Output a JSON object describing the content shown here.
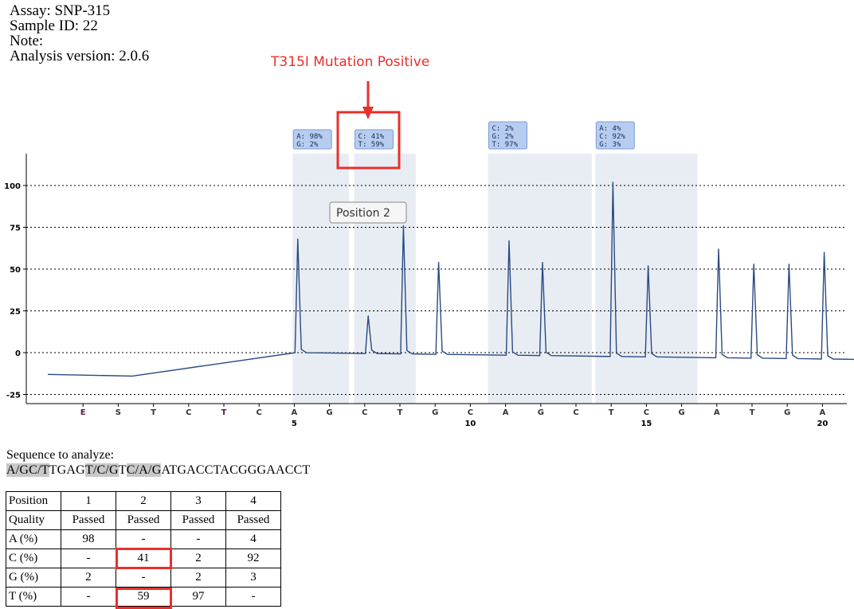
{
  "header": {
    "assay": "Assay: SNP-315",
    "sample": "Sample ID: 22",
    "note": "Note:",
    "version": "Analysis version: 2.0.6"
  },
  "annotation": {
    "text": "T315I Mutation Positive",
    "color": "#e8302c"
  },
  "tooltip": "Position 2",
  "chart_data": {
    "type": "line",
    "ylim": [
      -28,
      118
    ],
    "yticks": [
      100,
      75,
      50,
      25,
      0,
      -25
    ],
    "grid": "dotted horizontal",
    "line_color": "#2a4a84",
    "highlight_color": "#e8edf3",
    "dispensation_order": [
      "E",
      "S",
      "T",
      "C",
      "T",
      "C",
      "A",
      "G",
      "C",
      "T",
      "G",
      "C",
      "A",
      "G",
      "C",
      "T",
      "C",
      "G",
      "A",
      "T",
      "G",
      "A"
    ],
    "dispensation_numbers": [
      {
        "index": 7,
        "label": "5"
      },
      {
        "index": 12,
        "label": "10"
      },
      {
        "index": 17,
        "label": "15"
      },
      {
        "index": 22,
        "label": "20"
      }
    ],
    "highlight_regions": [
      {
        "from": 6.95,
        "to": 8.55,
        "label": [
          "A: 98%",
          "G: 2%"
        ]
      },
      {
        "from": 8.7,
        "to": 10.45,
        "label": [
          "C: 41%",
          "T: 59%"
        ]
      },
      {
        "from": 12.5,
        "to": 15.45,
        "label": [
          "C: 2%",
          "G: 2%",
          "T: 97%"
        ]
      },
      {
        "from": 15.55,
        "to": 18.45,
        "label": [
          "A: 4%",
          "C: 92%",
          "G: 3%"
        ]
      }
    ],
    "baseline": [
      [
        0.0,
        -13
      ],
      [
        2.4,
        -14
      ],
      [
        2.5,
        1
      ],
      [
        7.0,
        0
      ],
      [
        22.9,
        -4
      ]
    ],
    "peaks": [
      {
        "disp": "A",
        "x": 7.1,
        "value": 68
      },
      {
        "disp": "C",
        "x": 9.1,
        "value": 22
      },
      {
        "disp": "T",
        "x": 10.1,
        "value": 76
      },
      {
        "disp": "G",
        "x": 11.1,
        "value": 54
      },
      {
        "disp": "A",
        "x": 13.1,
        "value": 67
      },
      {
        "disp": "G",
        "x": 14.05,
        "value": 54
      },
      {
        "disp": "T",
        "x": 16.05,
        "value": 102
      },
      {
        "disp": "C",
        "x": 17.05,
        "value": 52
      },
      {
        "disp": "A",
        "x": 19.05,
        "value": 62
      },
      {
        "disp": "T",
        "x": 20.05,
        "value": 53
      },
      {
        "disp": "G",
        "x": 21.05,
        "value": 53
      },
      {
        "disp": "A",
        "x": 22.05,
        "value": 60
      }
    ]
  },
  "sequence": {
    "label": "Sequence to analyze:",
    "parts": [
      {
        "text": "A/GC/T",
        "hl": true
      },
      {
        "text": "TGAG",
        "hl": false
      },
      {
        "text": "T/C/G",
        "hl": true
      },
      {
        "text": "T",
        "hl": false
      },
      {
        "text": "C/A/G",
        "hl": true
      },
      {
        "text": "ATGACCTACGGGAACCT",
        "hl": false
      }
    ]
  },
  "table": {
    "rows": [
      [
        "Position",
        "1",
        "2",
        "3",
        "4"
      ],
      [
        "Quality",
        "Passed",
        "Passed",
        "Passed",
        "Passed"
      ],
      [
        "A (%)",
        "98",
        "-",
        "-",
        "4"
      ],
      [
        "C (%)",
        "-",
        "41",
        "2",
        "92"
      ],
      [
        "G (%)",
        "2",
        "-",
        "2",
        "3"
      ],
      [
        "T (%)",
        "-",
        "59",
        "97",
        "-"
      ]
    ]
  }
}
